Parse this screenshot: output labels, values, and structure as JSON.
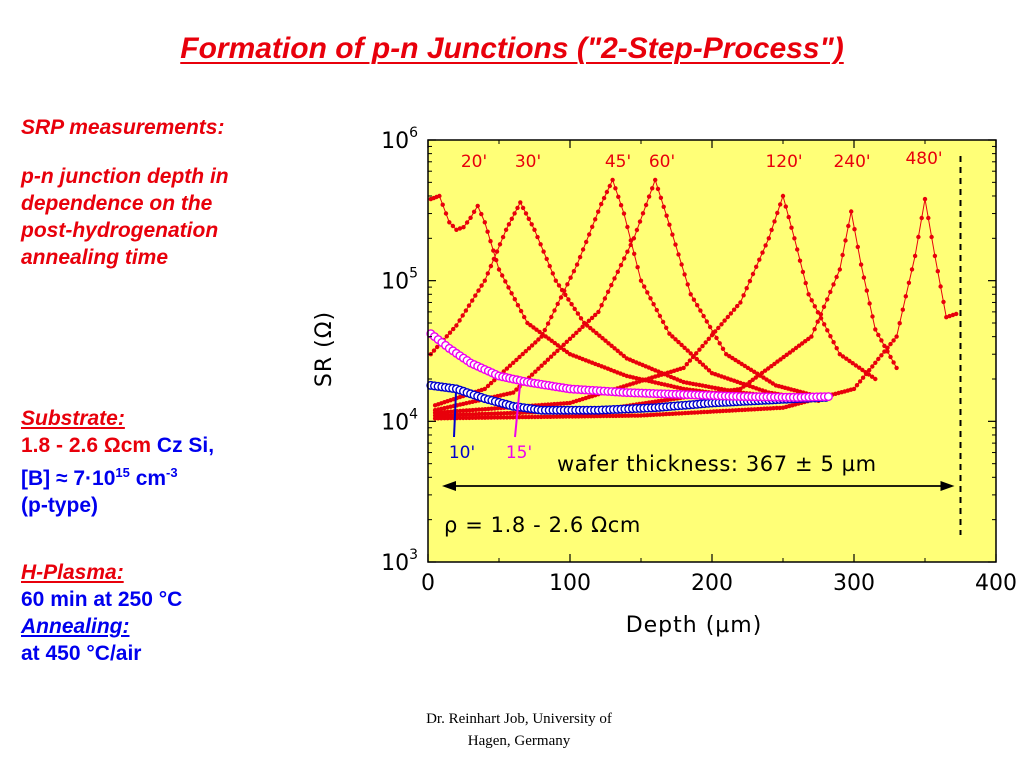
{
  "title": "Formation of p-n Junctions (\"2-Step-Process\")",
  "left_panel": {
    "srp_heading": "SRP measurements:",
    "srp_desc": [
      "p-n junction depth in",
      "dependence on the",
      "post-hydrogenation",
      "annealing time"
    ],
    "substrate_heading": "Substrate:",
    "resistivity": "1.8 - 2.6 Ωcm",
    "material": "Cz Si,",
    "doping_prefix": "[B] ≈ 7·10",
    "doping_exp": "15",
    "doping_unit": " cm",
    "doping_unit_exp": "-3",
    "type": "(p-type)",
    "plasma_heading": "H-Plasma:",
    "plasma_cond": "60 min at 250 °C",
    "annealing_heading": "Annealing:",
    "annealing_cond": "at 450 °C/air"
  },
  "footer": [
    "Dr. Reinhart Job, University of",
    "Hagen, Germany"
  ],
  "colors": {
    "title": "#e8000b",
    "plot_bg": "#ffff77",
    "series_red": "#e8000b",
    "series_blue": "#0000cc",
    "series_magenta": "#ee00ee",
    "text_blue": "#0000ee"
  },
  "chart_data": {
    "type": "scatter",
    "xlabel": "Depth (µm)",
    "ylabel": "SR (Ω)",
    "xlim": [
      0,
      400
    ],
    "ylim": [
      1000,
      1000000
    ],
    "yscale": "log",
    "xticks": [
      "0",
      "100",
      "200",
      "300",
      "400"
    ],
    "yticks": [
      {
        "base": "10",
        "exp": "3",
        "value": 1000
      },
      {
        "base": "10",
        "exp": "4",
        "value": 10000
      },
      {
        "base": "10",
        "exp": "5",
        "value": 100000
      },
      {
        "base": "10",
        "exp": "6",
        "value": 1000000
      }
    ],
    "grid": false,
    "annotations": {
      "wafer_thickness": "wafer thickness: 367 ± 5 µm",
      "resistivity": "ρ = 1.8 - 2.6 Ωcm"
    },
    "wafer_edge_x": 375,
    "series": [
      {
        "label": "10'",
        "color": "#0000cc",
        "marker": "open-circle",
        "label_color": "#0000cc",
        "points": [
          [
            2,
            18000
          ],
          [
            20,
            17000
          ],
          [
            40,
            14500
          ],
          [
            60,
            12800
          ],
          [
            80,
            12000
          ],
          [
            120,
            12000
          ],
          [
            160,
            12500
          ],
          [
            200,
            13500
          ],
          [
            230,
            14000
          ],
          [
            260,
            14500
          ],
          [
            280,
            14800
          ]
        ]
      },
      {
        "label": "15'",
        "color": "#ee00ee",
        "marker": "open-circle",
        "label_color": "#ee00ee",
        "points": [
          [
            2,
            42000
          ],
          [
            15,
            33000
          ],
          [
            30,
            26000
          ],
          [
            50,
            21000
          ],
          [
            70,
            19000
          ],
          [
            100,
            17000
          ],
          [
            140,
            16000
          ],
          [
            180,
            15500
          ],
          [
            220,
            15000
          ],
          [
            260,
            14800
          ],
          [
            282,
            15000
          ]
        ]
      },
      {
        "label": "20'",
        "color": "#e8000b",
        "marker": "dot",
        "label_color": "#e8000b",
        "points": [
          [
            2,
            380000
          ],
          [
            8,
            400000
          ],
          [
            15,
            260000
          ],
          [
            20,
            230000
          ],
          [
            25,
            240000
          ],
          [
            30,
            280000
          ],
          [
            35,
            340000
          ],
          [
            40,
            260000
          ],
          [
            50,
            120000
          ],
          [
            70,
            50000
          ],
          [
            100,
            30000
          ],
          [
            140,
            21000
          ],
          [
            180,
            17000
          ],
          [
            220,
            15000
          ],
          [
            250,
            14000
          ]
        ]
      },
      {
        "label": "30'",
        "color": "#e8000b",
        "marker": "dot",
        "label_color": "#e8000b",
        "points": [
          [
            2,
            30000
          ],
          [
            20,
            48000
          ],
          [
            40,
            100000
          ],
          [
            55,
            230000
          ],
          [
            65,
            360000
          ],
          [
            75,
            230000
          ],
          [
            90,
            100000
          ],
          [
            110,
            50000
          ],
          [
            140,
            28000
          ],
          [
            180,
            19000
          ],
          [
            220,
            16000
          ],
          [
            260,
            14500
          ]
        ]
      },
      {
        "label": "45'",
        "color": "#e8000b",
        "marker": "dot",
        "label_color": "#e8000b",
        "points": [
          [
            5,
            13000
          ],
          [
            40,
            17000
          ],
          [
            80,
            40000
          ],
          [
            105,
            130000
          ],
          [
            122,
            350000
          ],
          [
            130,
            520000
          ],
          [
            138,
            300000
          ],
          [
            150,
            100000
          ],
          [
            170,
            42000
          ],
          [
            200,
            22000
          ],
          [
            240,
            16000
          ],
          [
            275,
            14000
          ]
        ]
      },
      {
        "label": "60'",
        "color": "#e8000b",
        "marker": "dot",
        "label_color": "#e8000b",
        "points": [
          [
            5,
            12000
          ],
          [
            60,
            16000
          ],
          [
            120,
            60000
          ],
          [
            145,
            200000
          ],
          [
            160,
            520000
          ],
          [
            170,
            250000
          ],
          [
            185,
            80000
          ],
          [
            210,
            30000
          ],
          [
            245,
            18000
          ],
          [
            275,
            15000
          ]
        ]
      },
      {
        "label": "120'",
        "color": "#e8000b",
        "marker": "dot",
        "label_color": "#e8000b",
        "points": [
          [
            5,
            11500
          ],
          [
            100,
            13500
          ],
          [
            180,
            24000
          ],
          [
            220,
            70000
          ],
          [
            240,
            200000
          ],
          [
            250,
            400000
          ],
          [
            258,
            200000
          ],
          [
            268,
            80000
          ],
          [
            290,
            30000
          ],
          [
            315,
            20000
          ]
        ]
      },
      {
        "label": "240'",
        "color": "#e8000b",
        "marker": "dot",
        "label_color": "#e8000b",
        "points": [
          [
            5,
            11000
          ],
          [
            120,
            12000
          ],
          [
            220,
            17000
          ],
          [
            270,
            40000
          ],
          [
            290,
            120000
          ],
          [
            298,
            310000
          ],
          [
            305,
            130000
          ],
          [
            315,
            45000
          ],
          [
            330,
            24000
          ]
        ]
      },
      {
        "label": "480'",
        "color": "#e8000b",
        "marker": "dot",
        "label_color": "#e8000b",
        "points": [
          [
            5,
            10500
          ],
          [
            150,
            11000
          ],
          [
            250,
            12500
          ],
          [
            300,
            17000
          ],
          [
            330,
            40000
          ],
          [
            343,
            150000
          ],
          [
            350,
            380000
          ],
          [
            357,
            150000
          ],
          [
            365,
            55000
          ],
          [
            372,
            58000
          ]
        ]
      }
    ]
  }
}
